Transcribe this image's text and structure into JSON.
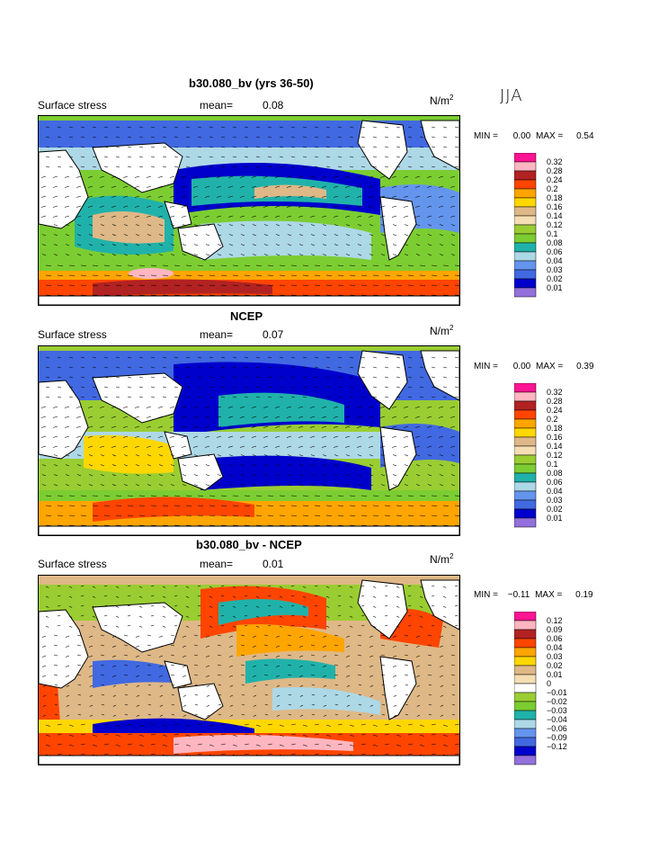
{
  "season": "JJA",
  "units_prefix": "N/m",
  "units_exp": "2",
  "panels": [
    {
      "title": "b30.080_bv (yrs 36-50)",
      "label": "Surface stress",
      "mean_label": "mean=",
      "mean_value": "0.08",
      "min_label": "MIN =",
      "min_value": "0.00",
      "max_label": "MAX =",
      "max_value": "0.54",
      "levels": [
        "0.32",
        "0.28",
        "0.24",
        "0.2",
        "0.18",
        "0.16",
        "0.14",
        "0.12",
        "0.1",
        "0.08",
        "0.06",
        "0.04",
        "0.03",
        "0.02",
        "0.01"
      ]
    },
    {
      "title": "NCEP",
      "label": "Surface stress",
      "mean_label": "mean=",
      "mean_value": "0.07",
      "min_label": "MIN =",
      "min_value": "0.00",
      "max_label": "MAX =",
      "max_value": "0.39",
      "levels": [
        "0.32",
        "0.28",
        "0.24",
        "0.2",
        "0.18",
        "0.16",
        "0.14",
        "0.12",
        "0.1",
        "0.08",
        "0.06",
        "0.04",
        "0.03",
        "0.02",
        "0.01"
      ]
    },
    {
      "title": "b30.080_bv - NCEP",
      "label": "Surface stress",
      "mean_label": "mean=",
      "mean_value": "0.01",
      "min_label": "MIN =",
      "min_value": "−0.11",
      "max_label": "MAX =",
      "max_value": "0.19",
      "levels": [
        "0.12",
        "0.09",
        "0.06",
        "0.04",
        "0.03",
        "0.02",
        "0.01",
        "0",
        "−0.01",
        "−0.02",
        "−0.03",
        "−0.04",
        "−0.06",
        "−0.09",
        "−0.12"
      ]
    }
  ],
  "colors": {
    "positive": [
      "#ff1493",
      "#ffb6c1",
      "#b22222",
      "#ff4500",
      "#ffa500",
      "#ffd700",
      "#deb887",
      "#f5deb3",
      "#9acd32",
      "#7ccd32",
      "#20b2aa",
      "#add8e6",
      "#6495ed",
      "#4169e1",
      "#0000cd",
      "#9370db"
    ],
    "difference": [
      "#ff1493",
      "#ffb6c1",
      "#b22222",
      "#ff4500",
      "#ffa500",
      "#ffd700",
      "#deb887",
      "#f5deb3",
      "#ffffff",
      "#9acd32",
      "#7ccd32",
      "#20b2aa",
      "#add8e6",
      "#6495ed",
      "#4169e1",
      "#0000cd",
      "#9370db"
    ]
  }
}
